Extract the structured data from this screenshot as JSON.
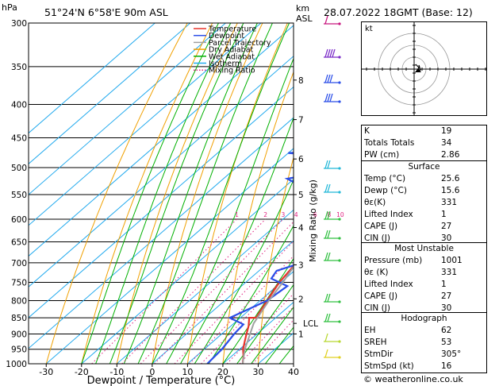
{
  "header": {
    "left_units": "hPa",
    "location": "51°24'N  6°58'E  90m  ASL",
    "km_label": "km",
    "asl_label": "ASL",
    "datetime": "28.07.2022  18GMT  (Base: 12)"
  },
  "legend": [
    {
      "label": "Temperature",
      "color": "#e8332b",
      "style": "solid"
    },
    {
      "label": "Dewpoint",
      "color": "#2b4ee8",
      "style": "solid"
    },
    {
      "label": "Parcel Trajectory",
      "color": "#a0a0a0",
      "style": "solid"
    },
    {
      "label": "Dry Adiabat",
      "color": "#f0a000",
      "style": "solid"
    },
    {
      "label": "Wet Adiabat",
      "color": "#00b000",
      "style": "solid"
    },
    {
      "label": "Isotherm",
      "color": "#22aaee",
      "style": "solid"
    },
    {
      "label": "Mixing Ratio",
      "color": "#e0207f",
      "style": "dotted"
    }
  ],
  "chart_data": {
    "type": "line",
    "xlabel": "Dewpoint / Temperature (°C)",
    "ylabel": "hPa",
    "right_axis_label": "Mixing Ratio (g/kg)",
    "xlim": [
      -35,
      40
    ],
    "ylim": [
      1000,
      300
    ],
    "x_ticks": [
      -30,
      -20,
      -10,
      0,
      10,
      20,
      30,
      40
    ],
    "pressure_ticks": [
      300,
      350,
      400,
      450,
      500,
      550,
      600,
      650,
      700,
      750,
      800,
      850,
      900,
      950,
      1000
    ],
    "km_ticks": [
      {
        "label": "8",
        "p": 367
      },
      {
        "label": "7",
        "p": 422
      },
      {
        "label": "6",
        "p": 485
      },
      {
        "label": "5",
        "p": 550
      },
      {
        "label": "4",
        "p": 618
      },
      {
        "label": "3",
        "p": 705
      },
      {
        "label": "2",
        "p": 795
      },
      {
        "label": "LCL",
        "p": 867
      },
      {
        "label": "1",
        "p": 900
      }
    ],
    "mixing_ratio_labels": [
      "1",
      "2",
      "3",
      "4",
      "6",
      "8",
      "10",
      "16",
      "20",
      "25"
    ],
    "series": [
      {
        "name": "Temperature",
        "points": [
          [
            1000,
            25.6
          ],
          [
            975,
            23.5
          ],
          [
            950,
            21
          ],
          [
            925,
            19
          ],
          [
            900,
            17
          ],
          [
            875,
            15
          ],
          [
            850,
            12.5
          ],
          [
            850,
            14.5
          ],
          [
            800,
            12
          ],
          [
            750,
            9.5
          ],
          [
            700,
            8
          ],
          [
            650,
            3
          ],
          [
            625,
            0
          ],
          [
            600,
            -1
          ],
          [
            575,
            -4
          ],
          [
            550,
            -7
          ],
          [
            500,
            -12
          ],
          [
            450,
            -18
          ],
          [
            400,
            -25
          ],
          [
            350,
            -32
          ],
          [
            300,
            -41
          ]
        ]
      },
      {
        "name": "Dewpoint",
        "points": [
          [
            1000,
            15.6
          ],
          [
            950,
            15
          ],
          [
            900,
            13.5
          ],
          [
            870,
            13
          ],
          [
            850,
            7
          ],
          [
            800,
            12
          ],
          [
            760,
            13
          ],
          [
            740,
            6
          ],
          [
            720,
            5
          ],
          [
            700,
            9.5
          ],
          [
            680,
            10
          ],
          [
            650,
            9
          ],
          [
            620,
            8
          ],
          [
            605,
            2
          ],
          [
            590,
            3
          ],
          [
            575,
            5
          ],
          [
            565,
            4
          ],
          [
            550,
            6
          ],
          [
            535,
            -15
          ],
          [
            520,
            -22
          ],
          [
            510,
            -15
          ],
          [
            500,
            -20
          ],
          [
            490,
            -10
          ],
          [
            480,
            -15
          ],
          [
            475,
            -30
          ],
          [
            470,
            -20
          ],
          [
            460,
            -25
          ],
          [
            450,
            -22
          ],
          [
            400,
            -22
          ],
          [
            350,
            -38
          ],
          [
            300,
            -30
          ]
        ]
      },
      {
        "name": "Parcel Trajectory",
        "points": [
          [
            1000,
            25.6
          ],
          [
            950,
            21.5
          ],
          [
            900,
            18
          ],
          [
            867,
            15.6
          ],
          [
            800,
            12.5
          ],
          [
            750,
            10.5
          ],
          [
            700,
            8
          ],
          [
            650,
            5.5
          ],
          [
            600,
            2
          ],
          [
            550,
            -1.5
          ],
          [
            500,
            -7
          ],
          [
            450,
            -13
          ],
          [
            400,
            -20
          ],
          [
            350,
            -28
          ],
          [
            300,
            -37
          ]
        ]
      }
    ]
  },
  "stats": {
    "k": {
      "label": "K",
      "value": "19"
    },
    "tt": {
      "label": "Totals Totals",
      "value": "34"
    },
    "pw": {
      "label": "PW (cm)",
      "value": "2.86"
    },
    "surface": {
      "title": "Surface",
      "rows": [
        {
          "label": "Temp (°C)",
          "value": "25.6"
        },
        {
          "label": "Dewp (°C)",
          "value": "15.6"
        },
        {
          "label": "θε(K)",
          "value": "331"
        },
        {
          "label": "Lifted Index",
          "value": "1"
        },
        {
          "label": "CAPE (J)",
          "value": "27"
        },
        {
          "label": "CIN (J)",
          "value": "30"
        }
      ]
    },
    "most_unstable": {
      "title": "Most Unstable",
      "rows": [
        {
          "label": "Pressure (mb)",
          "value": "1001"
        },
        {
          "label": "θε (K)",
          "value": "331"
        },
        {
          "label": "Lifted Index",
          "value": "1"
        },
        {
          "label": "CAPE (J)",
          "value": "27"
        },
        {
          "label": "CIN (J)",
          "value": "30"
        }
      ]
    },
    "hodograph": {
      "title": "Hodograph",
      "rows": [
        {
          "label": "EH",
          "value": "62"
        },
        {
          "label": "SREH",
          "value": "53"
        },
        {
          "label": "StmDir",
          "value": "305°"
        },
        {
          "label": "StmSpd (kt)",
          "value": "16"
        }
      ]
    }
  },
  "hodo_units": "kt",
  "credit": "© weatheronline.co.uk"
}
